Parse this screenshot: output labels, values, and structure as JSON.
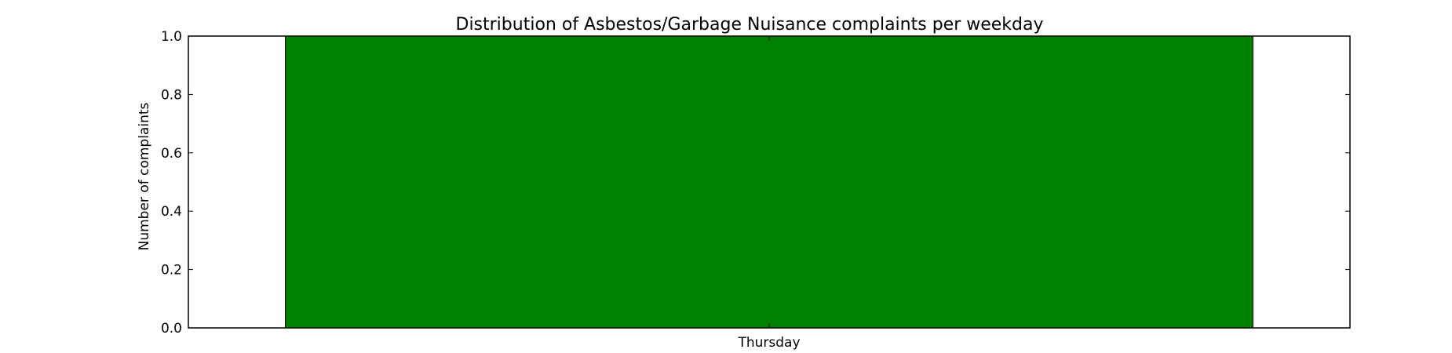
{
  "chart_data": {
    "type": "bar",
    "title": "Distribution of  Asbestos/Garbage Nuisance complaints per weekday",
    "xlabel": "",
    "ylabel": "Number of complaints",
    "categories": [
      "Thursday"
    ],
    "values": [
      1.0
    ],
    "ylim": [
      0.0,
      1.0
    ],
    "yticks": [
      "0.0",
      "0.2",
      "0.4",
      "0.6",
      "0.8",
      "1.0"
    ],
    "bar_color": "#008000",
    "grid": false,
    "legend": "none"
  }
}
